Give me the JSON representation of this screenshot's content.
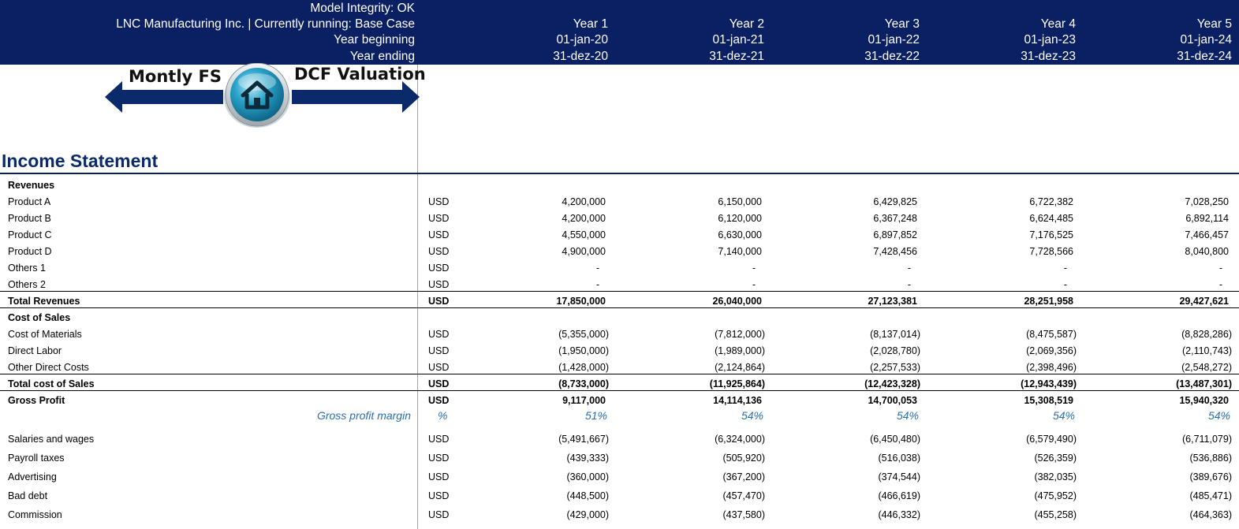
{
  "header": {
    "model_integrity": "Model Integrity: OK",
    "company_line": "LNC Manufacturing Inc. | Currently running: Base Case",
    "year_beginning_label": "Year beginning",
    "year_ending_label": "Year ending",
    "years": [
      {
        "label": "Year 1",
        "begin": "01-jan-20",
        "end": "31-dez-20"
      },
      {
        "label": "Year 2",
        "begin": "01-jan-21",
        "end": "31-dez-21"
      },
      {
        "label": "Year 3",
        "begin": "01-jan-22",
        "end": "31-dez-22"
      },
      {
        "label": "Year 4",
        "begin": "01-jan-23",
        "end": "31-dez-23"
      },
      {
        "label": "Year 5",
        "begin": "01-jan-24",
        "end": "31-dez-24"
      }
    ]
  },
  "nav": {
    "left_label": "Montly FS",
    "right_label": "DCF Valuation",
    "home_icon": "home-icon"
  },
  "section_title": "Income Statement",
  "rows": [
    {
      "label": "Revenues",
      "unit": "",
      "values": [
        "",
        "",
        "",
        "",
        ""
      ],
      "bold": true
    },
    {
      "label": "Product A",
      "unit": "USD",
      "values": [
        "4,200,000",
        "6,150,000",
        "6,429,825",
        "6,722,382",
        "7,028,250"
      ]
    },
    {
      "label": "Product B",
      "unit": "USD",
      "values": [
        "4,200,000",
        "6,120,000",
        "6,367,248",
        "6,624,485",
        "6,892,114"
      ]
    },
    {
      "label": "Product C",
      "unit": "USD",
      "values": [
        "4,550,000",
        "6,630,000",
        "6,897,852",
        "7,176,525",
        "7,466,457"
      ]
    },
    {
      "label": "Product D",
      "unit": "USD",
      "values": [
        "4,900,000",
        "7,140,000",
        "7,428,456",
        "7,728,566",
        "8,040,800"
      ]
    },
    {
      "label": "Others 1",
      "unit": "USD",
      "values": [
        "-",
        "-",
        "-",
        "-",
        "-"
      ]
    },
    {
      "label": "Others 2",
      "unit": "USD",
      "values": [
        "-",
        "-",
        "-",
        "-",
        "-"
      ]
    },
    {
      "label": "Total Revenues",
      "unit": "USD",
      "values": [
        "17,850,000",
        "26,040,000",
        "27,123,381",
        "28,251,958",
        "29,427,621"
      ],
      "bold": true
    },
    {
      "label": "Cost of Sales",
      "unit": "",
      "values": [
        "",
        "",
        "",
        "",
        ""
      ],
      "bold": true
    },
    {
      "label": "Cost of Materials",
      "unit": "USD",
      "values": [
        "(5,355,000)",
        "(7,812,000)",
        "(8,137,014)",
        "(8,475,587)",
        "(8,828,286)"
      ]
    },
    {
      "label": "Direct Labor",
      "unit": "USD",
      "values": [
        "(1,950,000)",
        "(1,989,000)",
        "(2,028,780)",
        "(2,069,356)",
        "(2,110,743)"
      ]
    },
    {
      "label": "Other Direct Costs",
      "unit": "USD",
      "values": [
        "(1,428,000)",
        "(2,124,864)",
        "(2,257,533)",
        "(2,398,496)",
        "(2,548,272)"
      ]
    },
    {
      "label": "Total cost of Sales",
      "unit": "USD",
      "values": [
        "(8,733,000)",
        "(11,925,864)",
        "(12,423,328)",
        "(12,943,439)",
        "(13,487,301)"
      ],
      "bold": true
    },
    {
      "label": "Gross Profit",
      "unit": "USD",
      "values": [
        "9,117,000",
        "14,114,136",
        "14,700,053",
        "15,308,519",
        "15,940,320"
      ],
      "bold": true
    },
    {
      "label": "Gross profit margin",
      "unit": "%",
      "values": [
        "51%",
        "54%",
        "54%",
        "54%",
        "54%"
      ],
      "pct": true
    },
    {
      "label": "Salaries and wages",
      "unit": "USD",
      "values": [
        "(5,491,667)",
        "(6,324,000)",
        "(6,450,480)",
        "(6,579,490)",
        "(6,711,079)"
      ]
    },
    {
      "label": "Payroll taxes",
      "unit": "USD",
      "values": [
        "(439,333)",
        "(505,920)",
        "(516,038)",
        "(526,359)",
        "(536,886)"
      ]
    },
    {
      "label": "Advertising",
      "unit": "USD",
      "values": [
        "(360,000)",
        "(367,200)",
        "(374,544)",
        "(382,035)",
        "(389,676)"
      ]
    },
    {
      "label": "Bad debt",
      "unit": "USD",
      "values": [
        "(448,500)",
        "(457,470)",
        "(466,619)",
        "(475,952)",
        "(485,471)"
      ]
    },
    {
      "label": "Commission",
      "unit": "USD",
      "values": [
        "(429,000)",
        "(437,580)",
        "(446,332)",
        "(455,258)",
        "(464,363)"
      ]
    }
  ]
}
